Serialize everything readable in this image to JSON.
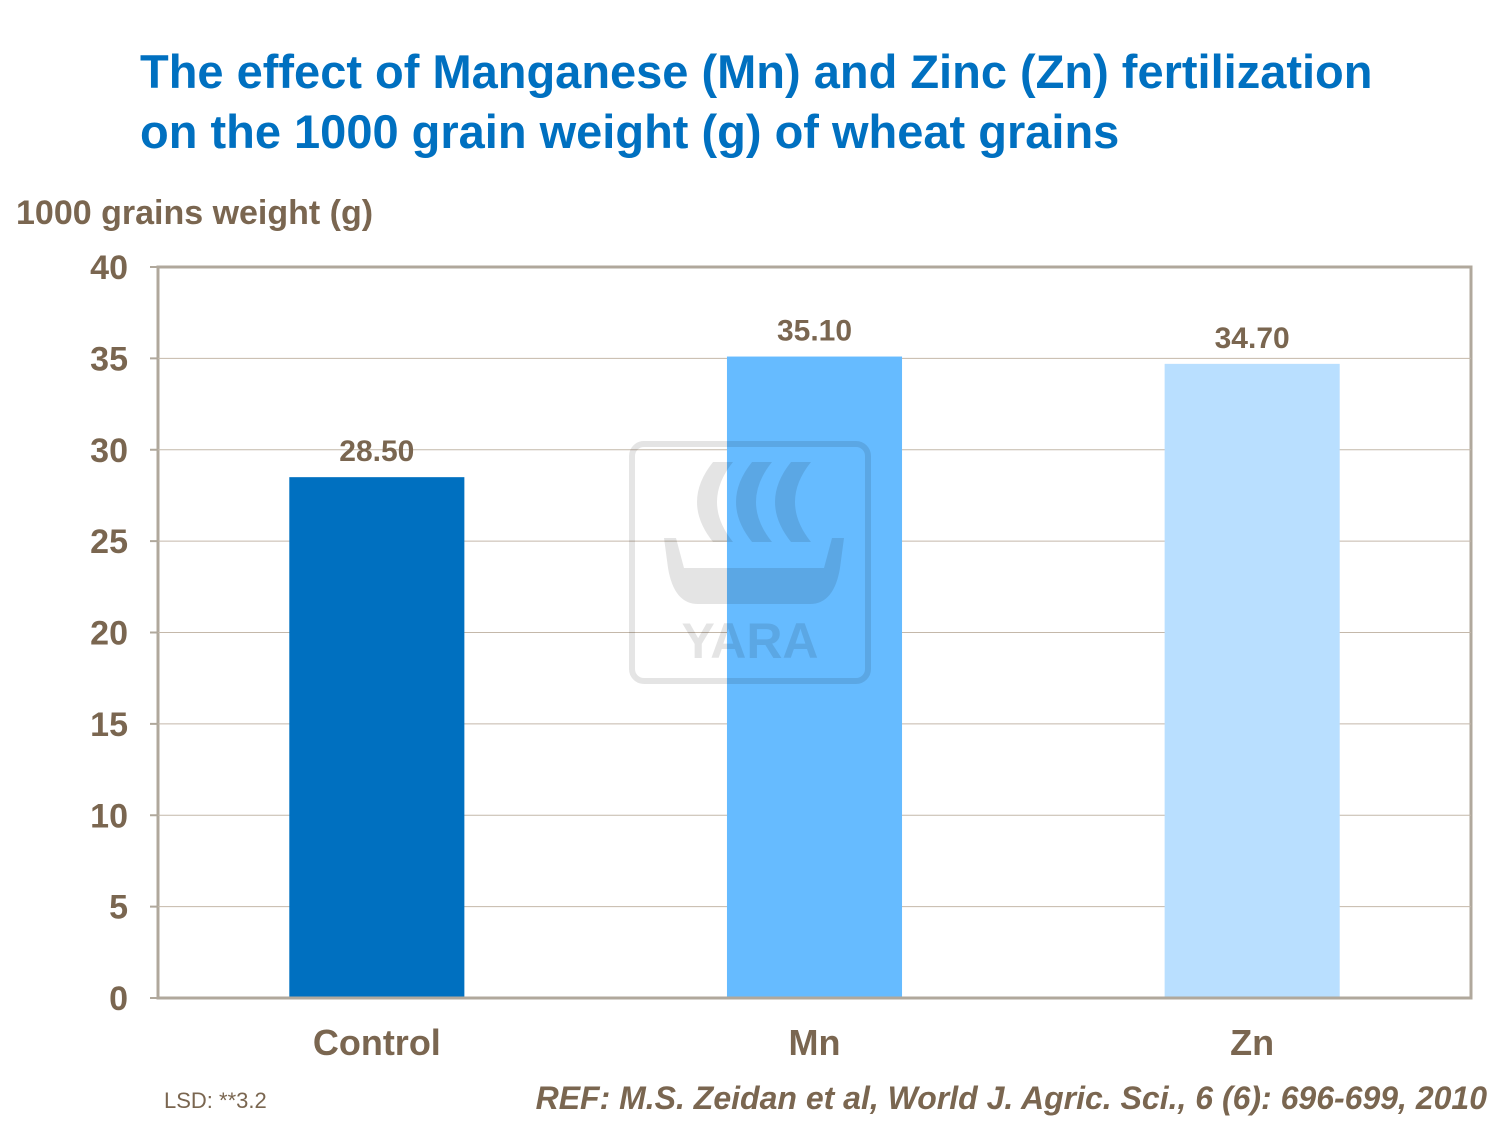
{
  "chart_data": {
    "type": "bar",
    "title": "The effect of Manganese (Mn) and Zinc (Zn) fertilization on the 1000 grain weight (g) of wheat grains",
    "title_lines": [
      "The effect of Manganese (Mn) and Zinc (Zn) fertilization",
      "on the 1000 grain weight (g) of wheat grains"
    ],
    "xlabel": "",
    "ylabel": "1000 grains weight (g)",
    "categories": [
      "Control",
      "Mn",
      "Zn"
    ],
    "values": [
      28.5,
      35.1,
      34.7
    ],
    "data_labels": [
      "28.50",
      "35.10",
      "34.70"
    ],
    "colors": [
      "#0070C0",
      "#66BBFF",
      "#B9DFFF"
    ],
    "ylim": [
      0,
      40
    ],
    "yticks": [
      0,
      5,
      10,
      15,
      20,
      25,
      30,
      35,
      40
    ],
    "grid": true,
    "legend": "none"
  },
  "watermark": {
    "logo": "YARA"
  },
  "footer": {
    "lsd": "LSD: **3.2",
    "ref": "REF: M.S. Zeidan et al, World J. Agric. Sci., 6 (6): 696-699, 2010"
  },
  "colors": {
    "title": "#0070C0",
    "text": "#7a6650",
    "axis": "#b0a89c"
  }
}
